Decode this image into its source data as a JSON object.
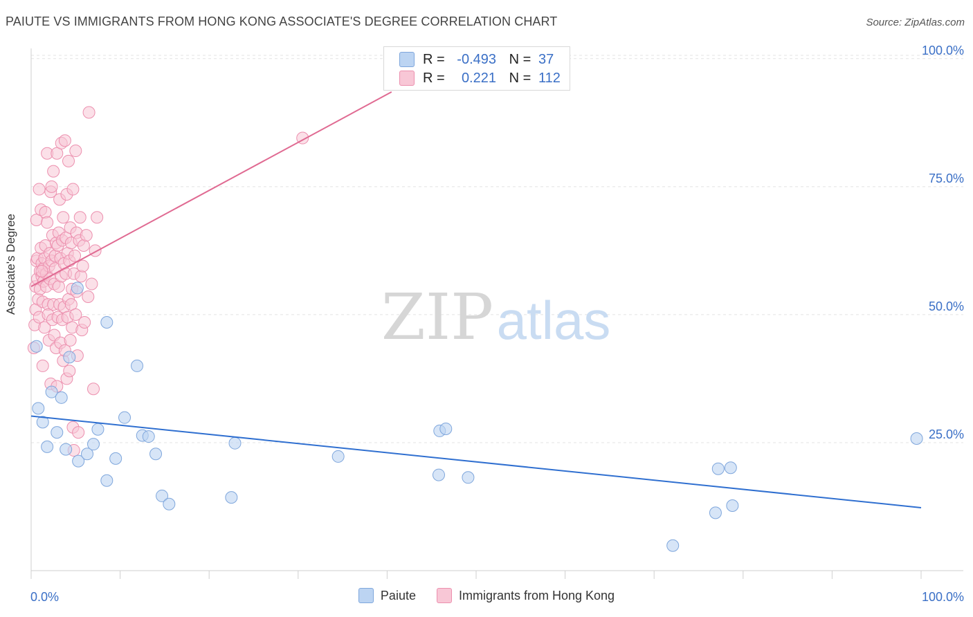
{
  "header": {
    "title": "PAIUTE VS IMMIGRANTS FROM HONG KONG ASSOCIATE'S DEGREE CORRELATION CHART",
    "source": "Source: ZipAtlas.com"
  },
  "stats": {
    "blue": {
      "r_label": "R =",
      "r_value": "-0.493",
      "n_label": "N =",
      "n_value": "37"
    },
    "pink": {
      "r_label": "R =",
      "r_value": "0.221",
      "n_label": "N =",
      "n_value": "112"
    }
  },
  "watermark": {
    "zip": "ZIP",
    "atlas": "atlas"
  },
  "legend": {
    "paiute": "Paiute",
    "hongkong": "Immigrants from Hong Kong"
  },
  "colors": {
    "blue_fill": "#bcd4f2",
    "blue_stroke": "#7ea6dc",
    "blue_line": "#2f6fd0",
    "pink_fill": "#f8c7d6",
    "pink_stroke": "#ec8fae",
    "pink_line": "#e06a92",
    "axis_text": "#3a6fc6"
  },
  "chart_data": {
    "type": "scatter",
    "title": "PAIUTE VS IMMIGRANTS FROM HONG KONG ASSOCIATE'S DEGREE CORRELATION CHART",
    "xlabel": "",
    "ylabel": "Associate's Degree",
    "xlim": [
      0,
      100
    ],
    "ylim": [
      0,
      102
    ],
    "x_tick_labels": [
      "0.0%",
      "100.0%"
    ],
    "y_ticks": [
      25,
      50,
      75,
      100
    ],
    "y_tick_labels": [
      "25.0%",
      "50.0%",
      "75.0%",
      "100.0%"
    ],
    "grid": true,
    "series": [
      {
        "name": "Paiute",
        "trend": {
          "x": [
            0,
            100
          ],
          "y": [
            30.2,
            12.3
          ]
        },
        "points": [
          [
            0.6,
            43.8
          ],
          [
            0.8,
            31.7
          ],
          [
            1.3,
            29.0
          ],
          [
            1.8,
            24.2
          ],
          [
            2.3,
            34.9
          ],
          [
            2.9,
            27.0
          ],
          [
            3.4,
            33.8
          ],
          [
            3.9,
            23.7
          ],
          [
            4.3,
            41.7
          ],
          [
            5.2,
            55.2
          ],
          [
            5.3,
            21.4
          ],
          [
            6.3,
            22.8
          ],
          [
            7.0,
            24.7
          ],
          [
            7.5,
            27.6
          ],
          [
            8.5,
            48.5
          ],
          [
            8.5,
            17.6
          ],
          [
            9.5,
            21.9
          ],
          [
            10.5,
            29.9
          ],
          [
            11.9,
            40.0
          ],
          [
            12.5,
            26.4
          ],
          [
            13.2,
            26.2
          ],
          [
            14.0,
            22.8
          ],
          [
            14.7,
            14.6
          ],
          [
            15.5,
            13.0
          ],
          [
            22.5,
            14.3
          ],
          [
            22.9,
            24.9
          ],
          [
            34.5,
            22.3
          ],
          [
            45.8,
            18.7
          ],
          [
            45.9,
            27.3
          ],
          [
            46.6,
            27.7
          ],
          [
            49.1,
            18.2
          ],
          [
            72.1,
            4.9
          ],
          [
            77.2,
            19.9
          ],
          [
            78.6,
            20.1
          ],
          [
            76.9,
            11.3
          ],
          [
            78.8,
            12.7
          ],
          [
            99.5,
            25.8
          ]
        ]
      },
      {
        "name": "Immigrants from Hong Kong",
        "trend": {
          "x": [
            0,
            40.5
          ],
          "y": [
            55.5,
            93.5
          ]
        },
        "points": [
          [
            0.3,
            43.5
          ],
          [
            0.4,
            48.0
          ],
          [
            0.5,
            51.0
          ],
          [
            0.5,
            55.5
          ],
          [
            0.6,
            60.5
          ],
          [
            0.6,
            68.5
          ],
          [
            0.7,
            57.0
          ],
          [
            0.7,
            61.0
          ],
          [
            0.8,
            53.0
          ],
          [
            0.9,
            74.5
          ],
          [
            0.9,
            49.5
          ],
          [
            1.0,
            58.5
          ],
          [
            1.0,
            55.0
          ],
          [
            1.1,
            63.0
          ],
          [
            1.1,
            70.5
          ],
          [
            1.2,
            57.5
          ],
          [
            1.2,
            60.0
          ],
          [
            1.3,
            40.0
          ],
          [
            1.3,
            52.5
          ],
          [
            1.4,
            56.5
          ],
          [
            1.4,
            59.0
          ],
          [
            1.5,
            61.0
          ],
          [
            1.5,
            47.5
          ],
          [
            1.6,
            63.5
          ],
          [
            1.6,
            70.0
          ],
          [
            1.7,
            58.0
          ],
          [
            1.7,
            55.5
          ],
          [
            1.8,
            81.5
          ],
          [
            1.8,
            68.0
          ],
          [
            1.9,
            52.0
          ],
          [
            1.9,
            50.0
          ],
          [
            2.0,
            59.5
          ],
          [
            2.0,
            45.0
          ],
          [
            2.1,
            62.0
          ],
          [
            2.1,
            57.0
          ],
          [
            2.2,
            74.0
          ],
          [
            2.2,
            36.5
          ],
          [
            2.3,
            75.0
          ],
          [
            2.3,
            60.5
          ],
          [
            2.4,
            49.0
          ],
          [
            2.4,
            65.5
          ],
          [
            2.5,
            52.0
          ],
          [
            2.5,
            78.0
          ],
          [
            2.6,
            56.0
          ],
          [
            2.6,
            46.0
          ],
          [
            2.7,
            59.0
          ],
          [
            2.7,
            61.5
          ],
          [
            2.8,
            43.5
          ],
          [
            2.8,
            64.0
          ],
          [
            2.9,
            81.5
          ],
          [
            2.9,
            36.0
          ],
          [
            3.0,
            49.5
          ],
          [
            3.0,
            63.5
          ],
          [
            3.1,
            66.0
          ],
          [
            3.1,
            55.5
          ],
          [
            3.2,
            52.0
          ],
          [
            3.2,
            72.5
          ],
          [
            3.3,
            61.0
          ],
          [
            3.3,
            44.5
          ],
          [
            3.4,
            83.5
          ],
          [
            3.4,
            57.5
          ],
          [
            3.5,
            49.0
          ],
          [
            3.5,
            64.5
          ],
          [
            3.6,
            41.0
          ],
          [
            3.6,
            69.0
          ],
          [
            3.7,
            51.5
          ],
          [
            3.7,
            60.0
          ],
          [
            3.8,
            43.0
          ],
          [
            3.8,
            84.0
          ],
          [
            3.9,
            65.0
          ],
          [
            3.9,
            58.0
          ],
          [
            4.0,
            37.5
          ],
          [
            4.0,
            73.5
          ],
          [
            4.1,
            49.5
          ],
          [
            4.1,
            62.0
          ],
          [
            4.2,
            53.0
          ],
          [
            4.2,
            80.0
          ],
          [
            4.3,
            39.0
          ],
          [
            4.3,
            60.5
          ],
          [
            4.4,
            45.0
          ],
          [
            4.4,
            67.0
          ],
          [
            4.5,
            52.0
          ],
          [
            4.5,
            64.0
          ],
          [
            4.6,
            55.0
          ],
          [
            4.6,
            47.5
          ],
          [
            4.7,
            74.5
          ],
          [
            4.7,
            28.0
          ],
          [
            4.8,
            58.0
          ],
          [
            4.8,
            23.5
          ],
          [
            4.9,
            61.5
          ],
          [
            5.0,
            82.0
          ],
          [
            5.0,
            50.0
          ],
          [
            5.1,
            66.0
          ],
          [
            5.1,
            54.5
          ],
          [
            5.2,
            42.0
          ],
          [
            5.3,
            27.0
          ],
          [
            5.4,
            64.5
          ],
          [
            5.5,
            69.0
          ],
          [
            5.6,
            57.5
          ],
          [
            5.7,
            47.0
          ],
          [
            5.8,
            59.5
          ],
          [
            5.9,
            63.5
          ],
          [
            6.0,
            48.5
          ],
          [
            6.2,
            65.5
          ],
          [
            6.4,
            53.5
          ],
          [
            6.5,
            89.5
          ],
          [
            6.8,
            56.0
          ],
          [
            7.0,
            35.5
          ],
          [
            7.2,
            62.5
          ],
          [
            7.4,
            69.0
          ],
          [
            30.5,
            84.5
          ],
          [
            1.2,
            58.5
          ]
        ]
      }
    ]
  }
}
